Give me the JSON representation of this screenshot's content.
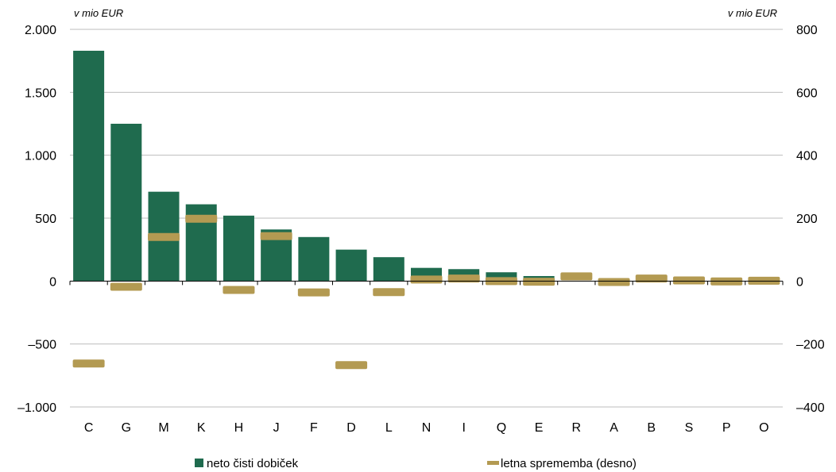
{
  "chart_data": {
    "type": "bar",
    "unit_left": "v mio EUR",
    "unit_right": "v mio EUR",
    "categories": [
      "C",
      "G",
      "M",
      "K",
      "H",
      "J",
      "F",
      "D",
      "L",
      "N",
      "I",
      "Q",
      "E",
      "R",
      "A",
      "B",
      "S",
      "P",
      "O"
    ],
    "y_left": {
      "min": -1000,
      "max": 2000,
      "ticks": [
        -1000,
        -500,
        0,
        500,
        1000,
        1500,
        2000
      ],
      "tick_labels": [
        "–1.000",
        "–500",
        "0",
        "500",
        "1.000",
        "1.500",
        "2.000"
      ]
    },
    "y_right": {
      "min": -400,
      "max": 800,
      "ticks": [
        -400,
        -200,
        0,
        200,
        400,
        600,
        800
      ],
      "tick_labels": [
        "–400",
        "–200",
        "0",
        "200",
        "400",
        "600",
        "800"
      ]
    },
    "grid": true,
    "legend_position": "bottom",
    "series": [
      {
        "name": "neto čisti dobiček",
        "type": "bar",
        "axis": "left",
        "color": "#1f6b4e",
        "values": [
          1830,
          1250,
          710,
          610,
          520,
          410,
          350,
          250,
          190,
          105,
          95,
          70,
          40,
          0,
          0,
          0,
          0,
          0,
          0
        ]
      },
      {
        "name": "letna sprememba (desno)",
        "type": "marker",
        "axis": "right",
        "color": "#b39a52",
        "values": [
          -262,
          -18,
          140,
          198,
          -28,
          143,
          -36,
          -267,
          -35,
          5,
          8,
          0,
          -2,
          15,
          -3,
          8,
          2,
          -1,
          1
        ]
      }
    ]
  }
}
